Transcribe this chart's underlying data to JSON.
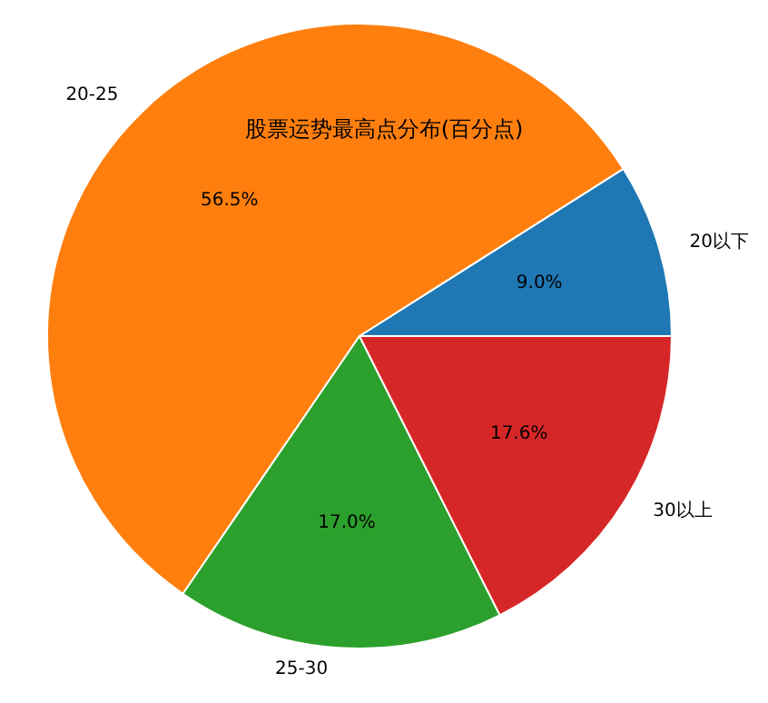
{
  "chart_data": {
    "type": "pie",
    "title": "股票运势最高点分布(百分点)",
    "categories": [
      "20以下",
      "20-25",
      "25-30",
      "30以上"
    ],
    "values": [
      9.0,
      56.5,
      17.0,
      17.6
    ],
    "colors": [
      "#1f77b4",
      "#ff7f0e",
      "#2ca02c",
      "#d62728"
    ],
    "value_labels": [
      "9.0%",
      "56.5%",
      "17.0%",
      "17.6%"
    ],
    "legend": false
  }
}
